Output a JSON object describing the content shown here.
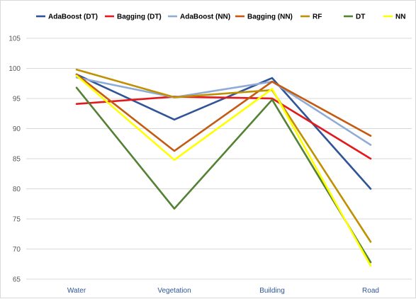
{
  "chart_data": {
    "type": "line",
    "title": "",
    "xlabel": "",
    "ylabel": "",
    "categories": [
      "Water",
      "Vegetation",
      "Building",
      "Road"
    ],
    "ylim": [
      65,
      105
    ],
    "yticks": [
      65,
      70,
      75,
      80,
      85,
      90,
      95,
      100,
      105
    ],
    "grid": true,
    "legend_position": "top",
    "series": [
      {
        "name": "AdaBoost (DT)",
        "color": "#2f5597",
        "values": [
          99.0,
          91.5,
          98.4,
          80.0
        ]
      },
      {
        "name": "Bagging (DT)",
        "color": "#e31a1c",
        "values": [
          94.1,
          95.3,
          95.0,
          85.0
        ]
      },
      {
        "name": "AdaBoost (NN)",
        "color": "#8fabd6",
        "values": [
          98.5,
          95.2,
          97.8,
          87.3
        ]
      },
      {
        "name": "Bagging (NN)",
        "color": "#c55a11",
        "values": [
          99.0,
          86.3,
          97.8,
          88.8
        ]
      },
      {
        "name": "RF",
        "color": "#bf9000",
        "values": [
          99.8,
          95.2,
          96.4,
          71.2
        ]
      },
      {
        "name": "DT",
        "color": "#548235",
        "values": [
          96.8,
          76.7,
          94.8,
          67.8
        ]
      },
      {
        "name": "NN",
        "color": "#ffff00",
        "values": [
          98.8,
          84.8,
          96.6,
          67.2
        ]
      }
    ]
  }
}
